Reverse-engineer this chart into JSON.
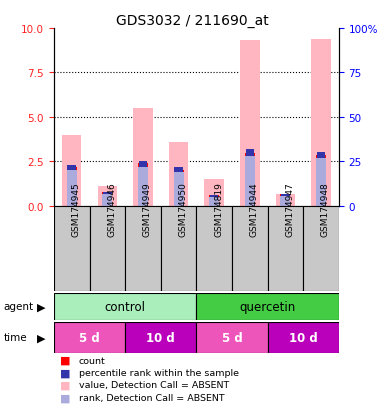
{
  "title": "GDS3032 / 211690_at",
  "samples": [
    "GSM174945",
    "GSM174946",
    "GSM174949",
    "GSM174950",
    "GSM174819",
    "GSM174944",
    "GSM174947",
    "GSM174948"
  ],
  "pink_bar_heights": [
    4.0,
    1.1,
    5.5,
    3.6,
    1.5,
    9.3,
    0.7,
    9.4
  ],
  "blue_bar_heights": [
    2.0,
    0.65,
    2.2,
    1.9,
    0.5,
    2.8,
    0.55,
    2.7
  ],
  "red_bar_heights": [
    0.18,
    0.12,
    0.2,
    0.15,
    0.14,
    0.2,
    0.1,
    0.18
  ],
  "blue_sq_heights": [
    0.28,
    0.14,
    0.32,
    0.28,
    0.14,
    0.38,
    0.12,
    0.32
  ],
  "ylim_left": [
    0,
    10
  ],
  "ylim_right": [
    0,
    100
  ],
  "yticks_left": [
    0,
    2.5,
    5.0,
    7.5,
    10
  ],
  "yticks_right": [
    0,
    25,
    50,
    75,
    100
  ],
  "pink_color": "#FFB6C1",
  "blue_color": "#AAAADD",
  "red_color": "#FF0000",
  "dark_blue_color": "#3333AA",
  "left_axis_color": "#FF2222",
  "right_axis_color": "#0000FF",
  "agent_groups": [
    {
      "label": "control",
      "start": 0,
      "end": 4,
      "color": "#AAEEBB"
    },
    {
      "label": "quercetin",
      "start": 4,
      "end": 8,
      "color": "#44CC44"
    }
  ],
  "time_groups": [
    {
      "label": "5 d",
      "start": 0,
      "end": 2,
      "color": "#EE55BB"
    },
    {
      "label": "10 d",
      "start": 2,
      "end": 4,
      "color": "#BB00BB"
    },
    {
      "label": "5 d",
      "start": 4,
      "end": 6,
      "color": "#EE55BB"
    },
    {
      "label": "10 d",
      "start": 6,
      "end": 8,
      "color": "#BB00BB"
    }
  ],
  "legend_colors": [
    "#FF0000",
    "#3333AA",
    "#FFB6C1",
    "#AAAADD"
  ],
  "legend_labels": [
    "count",
    "percentile rank within the sample",
    "value, Detection Call = ABSENT",
    "rank, Detection Call = ABSENT"
  ]
}
